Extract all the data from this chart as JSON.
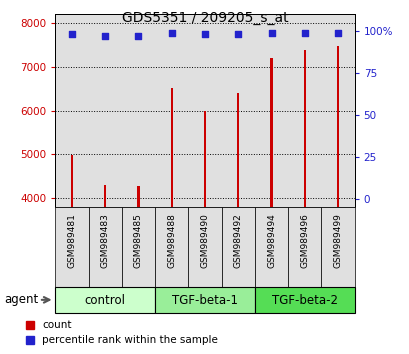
{
  "title": "GDS5351 / 209205_s_at",
  "samples": [
    "GSM989481",
    "GSM989483",
    "GSM989485",
    "GSM989488",
    "GSM989490",
    "GSM989492",
    "GSM989494",
    "GSM989496",
    "GSM989499"
  ],
  "counts": [
    4980,
    4310,
    4280,
    6510,
    6000,
    6410,
    7190,
    7390,
    7480
  ],
  "percentiles": [
    98,
    97,
    97,
    99,
    98,
    98,
    99,
    99,
    99
  ],
  "groups": [
    {
      "label": "control",
      "start": 0,
      "end": 3,
      "color": "#ccffcc"
    },
    {
      "label": "TGF-beta-1",
      "start": 3,
      "end": 6,
      "color": "#99ee99"
    },
    {
      "label": "TGF-beta-2",
      "start": 6,
      "end": 9,
      "color": "#55dd55"
    }
  ],
  "ylim_left": [
    3800,
    8200
  ],
  "ylim_right": [
    -5,
    110
  ],
  "right_ticks": [
    0,
    25,
    50,
    75,
    100
  ],
  "right_tick_labels": [
    "0",
    "25",
    "50",
    "75",
    "100%"
  ],
  "left_ticks": [
    4000,
    5000,
    6000,
    7000,
    8000
  ],
  "bar_color": "#cc0000",
  "dot_color": "#2222cc",
  "bar_width": 0.07,
  "bg_color": "#e0e0e0",
  "grid_color": "#000000",
  "title_fontsize": 10,
  "tick_fontsize": 7.5,
  "label_fontsize": 8.5,
  "sample_fontsize": 6.5,
  "agent_fontsize": 8.5
}
